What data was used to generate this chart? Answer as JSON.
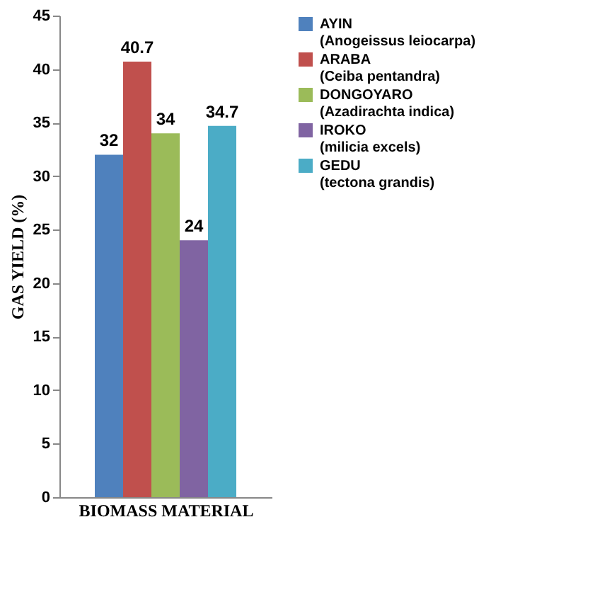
{
  "chart_data": {
    "type": "bar",
    "xlabel": "BIOMASS MATERIAL",
    "ylabel": "GAS YIELD (%)",
    "categories": [
      null
    ],
    "series": [
      {
        "name": "AYIN (Anogeissus leiocarpa)",
        "color": "#4f81bd",
        "values": [
          32
        ]
      },
      {
        "name": "ARABA (Ceiba pentandra)",
        "color": "#c0504d",
        "values": [
          40.7
        ]
      },
      {
        "name": "DONGOYARO (Azadirachta indica)",
        "color": "#9bbb59",
        "values": [
          34
        ]
      },
      {
        "name": "IROKO (milicia excels)",
        "color": "#8064a2",
        "values": [
          24
        ]
      },
      {
        "name": "GEDU (tectona grandis)",
        "color": "#4bacc6",
        "values": [
          34.7
        ]
      }
    ],
    "ylim": [
      0,
      45
    ],
    "yticks": [
      0,
      5,
      10,
      15,
      20,
      25,
      30,
      35,
      40,
      45
    ],
    "data_labels": true,
    "grid": false,
    "legend": "right"
  }
}
